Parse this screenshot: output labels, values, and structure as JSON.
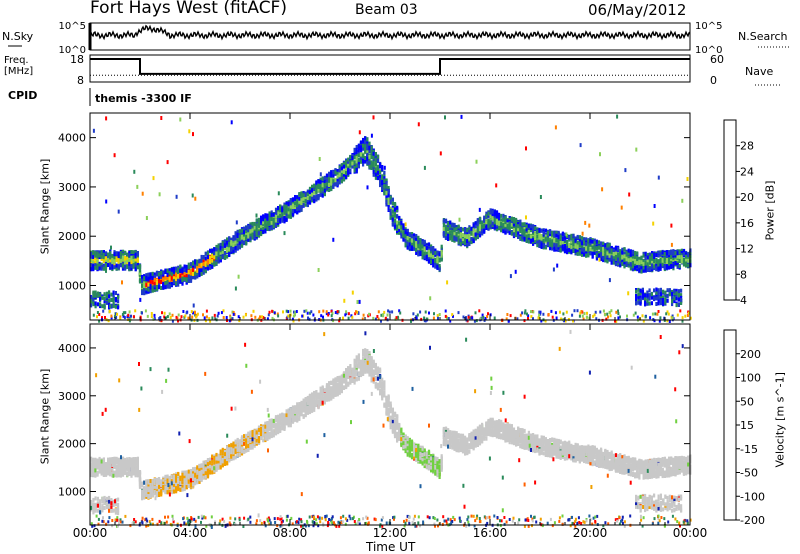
{
  "header": {
    "title": "Fort Hays West (fitACF)",
    "beam": "Beam 03",
    "date": "06/May/2012"
  },
  "noise_panel": {
    "left_label": "N.Sky",
    "right_label": "N.Search",
    "left_ticks": [
      "10^5",
      "10^0"
    ],
    "right_ticks": [
      "10^5",
      "10^0"
    ]
  },
  "freq_panel": {
    "left_label_line1": "Freq.",
    "left_label_line2": "[MHz]",
    "right_label": "Nave",
    "left_ticks": [
      "18",
      "8"
    ],
    "right_ticks": [
      "60",
      "0"
    ],
    "freq_steps": [
      {
        "t": 0.0,
        "f": 16.5
      },
      {
        "t": 2.0,
        "f": 11.0
      },
      {
        "t": 14.0,
        "f": 16.5
      },
      {
        "t": 24.0,
        "f": 16.5
      }
    ]
  },
  "cpid": {
    "label": "CPID",
    "value": "themis -3300 IF"
  },
  "power_panel": {
    "ylabel": "Slant Range [km]",
    "yticks": [
      "1000",
      "2000",
      "3000",
      "4000"
    ],
    "colorbar_label": "Power [dB]",
    "colorbar_ticks": [
      "28",
      "24",
      "20",
      "16",
      "12",
      "8",
      "4"
    ],
    "colors": [
      "#0000ff",
      "#1f3cc8",
      "#2a8a5a",
      "#8cd05a",
      "#f5d200",
      "#ff8000",
      "#ff0000"
    ]
  },
  "velocity_panel": {
    "ylabel": "Slant Range [km]",
    "yticks": [
      "1000",
      "2000",
      "3000",
      "4000"
    ],
    "colorbar_label": "Velocity [m s^-1]",
    "colorbar_ticks": [
      "200",
      "100",
      "50",
      "15",
      "-15",
      "-50",
      "-100",
      "-200"
    ],
    "colors": [
      "#1020b0",
      "#1f60a0",
      "#2a8a5a",
      "#70d040",
      "#c8c8c8",
      "#f0a000",
      "#ff6000",
      "#ff0000"
    ]
  },
  "xaxis": {
    "title": "Time UT",
    "ticks": [
      "00:00",
      "04:00",
      "08:00",
      "12:00",
      "16:00",
      "20:00",
      "00:00"
    ]
  },
  "chart_data": {
    "type": "heatmap",
    "title": "Fort Hays West (fitACF)",
    "xlabel": "Time UT",
    "ylabel": "Slant Range [km]",
    "xlim": [
      0,
      24
    ],
    "ylim": [
      300,
      4500
    ],
    "echo_band": [
      {
        "t": 0.0,
        "r": 1550
      },
      {
        "t": 1.9,
        "r": 1550
      },
      {
        "t": 2.0,
        "r": 1050
      },
      {
        "t": 4.0,
        "r": 1300
      },
      {
        "t": 6.0,
        "r": 2000
      },
      {
        "t": 8.0,
        "r": 2600
      },
      {
        "t": 10.0,
        "r": 3300
      },
      {
        "t": 11.0,
        "r": 3800
      },
      {
        "t": 11.6,
        "r": 3300
      },
      {
        "t": 12.0,
        "r": 2600
      },
      {
        "t": 12.6,
        "r": 2000
      },
      {
        "t": 13.5,
        "r": 1700
      },
      {
        "t": 14.0,
        "r": 1500
      },
      {
        "t": 14.1,
        "r": 2200
      },
      {
        "t": 15.0,
        "r": 2000
      },
      {
        "t": 16.0,
        "r": 2400
      },
      {
        "t": 18.0,
        "r": 2000
      },
      {
        "t": 20.0,
        "r": 1800
      },
      {
        "t": 22.0,
        "r": 1500
      },
      {
        "t": 24.0,
        "r": 1600
      }
    ],
    "lower_patches": [
      {
        "t0": 0.0,
        "t1": 1.1,
        "r": 750
      },
      {
        "t0": 21.8,
        "t1": 23.6,
        "r": 800
      }
    ]
  }
}
